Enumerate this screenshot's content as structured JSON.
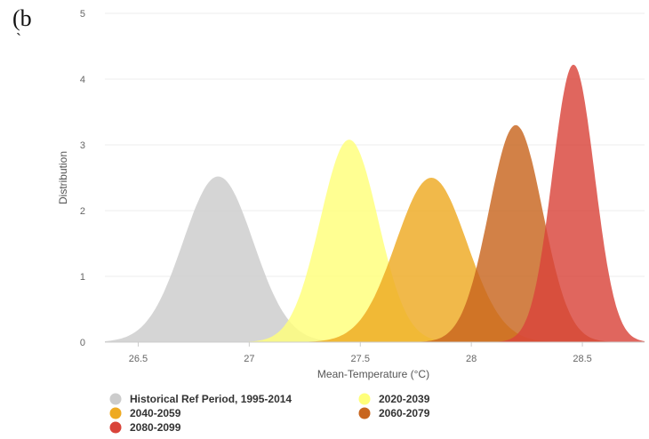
{
  "panel_label": "(b",
  "panel_label_tick": "`",
  "chart_data": {
    "type": "area",
    "title": "",
    "xlabel": "Mean-Temperature (°C)",
    "ylabel": "Distribution",
    "xlim": [
      26.35,
      28.78
    ],
    "ylim": [
      0,
      5
    ],
    "x_ticks": [
      "26.5",
      "27",
      "27.5",
      "28",
      "28.5"
    ],
    "y_ticks": [
      "0",
      "1",
      "2",
      "3",
      "4",
      "5"
    ],
    "grid": true,
    "legend_position": "bottom",
    "series": [
      {
        "name": "Historical Ref Period, 1995-2014",
        "color": "#cccccc",
        "mean": 26.86,
        "peak": 2.52,
        "sd": 0.158
      },
      {
        "name": "2020-2039",
        "color": "#ffff7a",
        "mean": 27.45,
        "peak": 3.08,
        "sd": 0.13
      },
      {
        "name": "2040-2059",
        "color": "#eeaa22",
        "mean": 27.82,
        "peak": 2.5,
        "sd": 0.16
      },
      {
        "name": "2060-2079",
        "color": "#c8651e",
        "mean": 28.2,
        "peak": 3.3,
        "sd": 0.121
      },
      {
        "name": "2080-2099",
        "color": "#d9443a",
        "mean": 28.46,
        "peak": 4.22,
        "sd": 0.095
      }
    ]
  }
}
